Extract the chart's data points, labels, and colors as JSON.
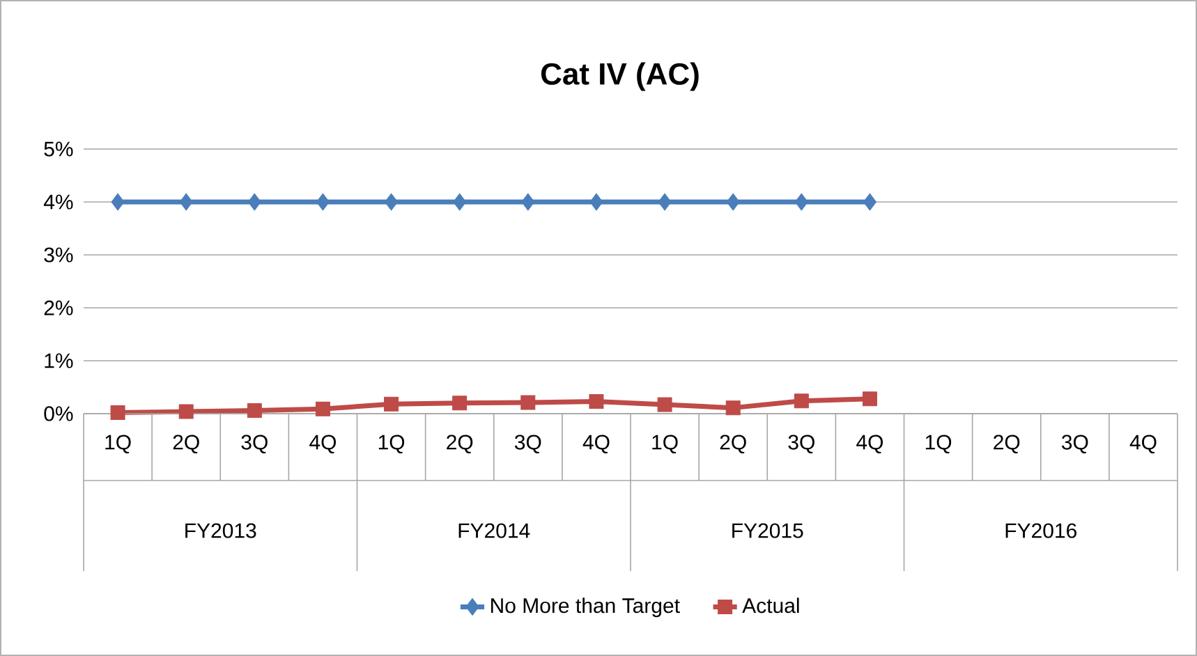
{
  "chart_data": {
    "type": "line",
    "title": "Cat IV (AC)",
    "categories": [
      "1Q",
      "2Q",
      "3Q",
      "4Q",
      "1Q",
      "2Q",
      "3Q",
      "4Q",
      "1Q",
      "2Q",
      "3Q",
      "4Q",
      "1Q",
      "2Q",
      "3Q",
      "4Q"
    ],
    "annotations": [
      "FY2013",
      "FY2014",
      "FY2015",
      "FY2016"
    ],
    "series": [
      {
        "name": "No More than Target",
        "color": "#4a7ebb",
        "marker": "diamond",
        "values": [
          4,
          4,
          4,
          4,
          4,
          4,
          4,
          4,
          4,
          4,
          4,
          4,
          null,
          null,
          null,
          null
        ]
      },
      {
        "name": "Actual",
        "color": "#be4b48",
        "marker": "square",
        "values": [
          0.02,
          0.04,
          0.06,
          0.09,
          0.18,
          0.2,
          0.21,
          0.23,
          0.17,
          0.11,
          0.24,
          0.28,
          null,
          null,
          null,
          null
        ]
      }
    ],
    "ylim": [
      0,
      5
    ],
    "yticks": [
      {
        "value": 0,
        "label": "0%"
      },
      {
        "value": 1,
        "label": "1%"
      },
      {
        "value": 2,
        "label": "2%"
      },
      {
        "value": 3,
        "label": "3%"
      },
      {
        "value": 4,
        "label": "4%"
      },
      {
        "value": 5,
        "label": "5%"
      }
    ],
    "grid": "y",
    "legend": "bottom"
  }
}
